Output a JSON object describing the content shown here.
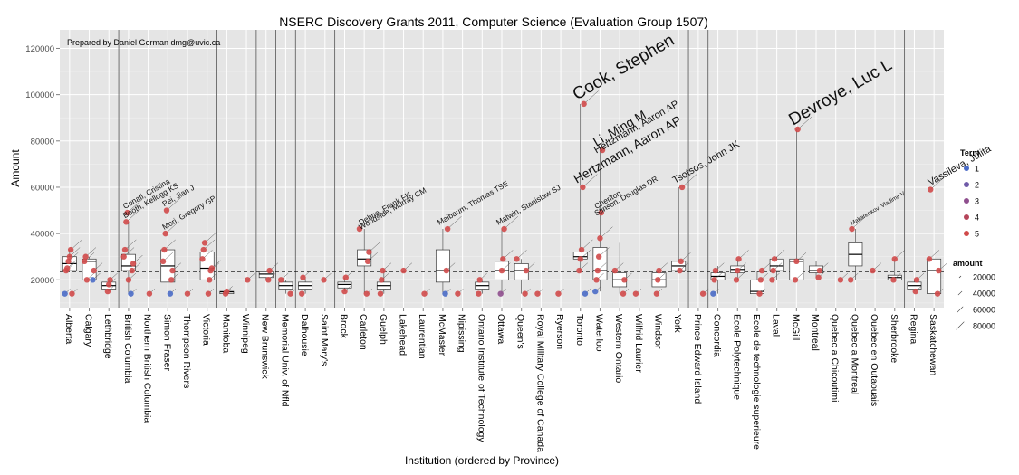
{
  "chart_data": {
    "type": "scatter",
    "title": "NSERC Discovery Grants 2011, Computer Science (Evaluation Group 1507)",
    "note": "Prepared by Daniel German dmg@uvic.ca",
    "xlabel": "Institution (ordered by Province)",
    "ylabel": "Amount",
    "ylim": [
      8000,
      128000
    ],
    "yticks": [
      20000,
      40000,
      60000,
      80000,
      100000,
      120000
    ],
    "ytick_labels": [
      "20000",
      "40000",
      "60000",
      "80000",
      "100000",
      "120000"
    ],
    "reference_line": 23600,
    "categories": [
      "Alberta",
      "Calgary",
      "Lethbridge",
      "British Columbia",
      "Northern British Columbia",
      "Simon Fraser",
      "Thompson Rivers",
      "Victoria",
      "Manitoba",
      "Winnipeg",
      "New Brunswick",
      "Memorial Univ. of Nfld",
      "Dalhousie",
      "Saint Mary's",
      "Brock",
      "Carleton",
      "Guelph",
      "Lakehead",
      "Laurentian",
      "McMaster",
      "Nipissing",
      "Ontario Institute of Technology",
      "Ottawa",
      "Queen's",
      "Royal Military College of Canada",
      "Ryerson",
      "Toronto",
      "Waterloo",
      "Western Ontario",
      "Wilfrid Laurier",
      "Windsor",
      "York",
      "Prince Edward Island",
      "Concordia",
      "Ecole Polytechnique",
      "Ecole de technologie superieure",
      "Laval",
      "McGill",
      "Montreal",
      "Quebec a Chicoutimi",
      "Quebec a Montreal",
      "Quebec en Outaouais",
      "Sherbrooke",
      "Regina",
      "Saskatchewan"
    ],
    "province_breaks_after": [
      2,
      7,
      9,
      10,
      11,
      13,
      31,
      32,
      42
    ],
    "boxes": [
      {
        "i": 0,
        "q1": 24000,
        "med": 27000,
        "q3": 30000,
        "lo": 24000,
        "hi": 33000
      },
      {
        "i": 1,
        "q1": 20000,
        "med": 28000,
        "q3": 29000,
        "lo": 20000,
        "hi": 30000
      },
      {
        "i": 2,
        "q1": 16000,
        "med": 17500,
        "q3": 19000,
        "lo": 15000,
        "hi": 20000
      },
      {
        "i": 3,
        "q1": 24000,
        "med": 26000,
        "q3": 31000,
        "lo": 14000,
        "hi": 45000
      },
      {
        "i": 5,
        "q1": 19000,
        "med": 26000,
        "q3": 33000,
        "lo": 14000,
        "hi": 50000
      },
      {
        "i": 7,
        "q1": 20000,
        "med": 25000,
        "q3": 32000,
        "lo": 14000,
        "hi": 36000
      },
      {
        "i": 8,
        "q1": 14000,
        "med": 14800,
        "q3": 15000,
        "lo": 14000,
        "hi": 15000
      },
      {
        "i": 10,
        "q1": 21000,
        "med": 22500,
        "q3": 23500,
        "lo": 20000,
        "hi": 24000
      },
      {
        "i": 11,
        "q1": 16000,
        "med": 17500,
        "q3": 19000,
        "lo": 14000,
        "hi": 20000
      },
      {
        "i": 12,
        "q1": 16000,
        "med": 17500,
        "q3": 19000,
        "lo": 14000,
        "hi": 21000
      },
      {
        "i": 14,
        "q1": 16500,
        "med": 18000,
        "q3": 19000,
        "lo": 15000,
        "hi": 21000
      },
      {
        "i": 15,
        "q1": 26000,
        "med": 29000,
        "q3": 33000,
        "lo": 14000,
        "hi": 42000
      },
      {
        "i": 16,
        "q1": 16000,
        "med": 17500,
        "q3": 19000,
        "lo": 14000,
        "hi": 24000
      },
      {
        "i": 19,
        "q1": 19000,
        "med": 24000,
        "q3": 33000,
        "lo": 14000,
        "hi": 42000
      },
      {
        "i": 21,
        "q1": 16000,
        "med": 17500,
        "q3": 19000,
        "lo": 14000,
        "hi": 20000
      },
      {
        "i": 22,
        "q1": 20000,
        "med": 24000,
        "q3": 28000,
        "lo": 14000,
        "hi": 42000
      },
      {
        "i": 23,
        "q1": 20000,
        "med": 24000,
        "q3": 27000,
        "lo": 14000,
        "hi": 29000
      },
      {
        "i": 26,
        "q1": 29000,
        "med": 30000,
        "q3": 32000,
        "lo": 24000,
        "hi": 96000
      },
      {
        "i": 27,
        "q1": 20000,
        "med": 24000,
        "q3": 34000,
        "lo": 15000,
        "hi": 76000
      },
      {
        "i": 28,
        "q1": 17000,
        "med": 20000,
        "q3": 23000,
        "lo": 14000,
        "hi": 36000
      },
      {
        "i": 30,
        "q1": 17000,
        "med": 20000,
        "q3": 23000,
        "lo": 14000,
        "hi": 24000
      },
      {
        "i": 31,
        "q1": 24000,
        "med": 26000,
        "q3": 28000,
        "lo": 24000,
        "hi": 60000
      },
      {
        "i": 33,
        "q1": 20000,
        "med": 21500,
        "q3": 23000,
        "lo": 14000,
        "hi": 26000
      },
      {
        "i": 34,
        "q1": 23000,
        "med": 24500,
        "q3": 26000,
        "lo": 20000,
        "hi": 29000
      },
      {
        "i": 35,
        "q1": 14000,
        "med": 15000,
        "q3": 20000,
        "lo": 14000,
        "hi": 24000
      },
      {
        "i": 36,
        "q1": 24000,
        "med": 26000,
        "q3": 29000,
        "lo": 20000,
        "hi": 30000
      },
      {
        "i": 37,
        "q1": 20000,
        "med": 28000,
        "q3": 29000,
        "lo": 20000,
        "hi": 85000
      },
      {
        "i": 38,
        "q1": 23000,
        "med": 24000,
        "q3": 26000,
        "lo": 21000,
        "hi": 28000
      },
      {
        "i": 40,
        "q1": 26000,
        "med": 31000,
        "q3": 36000,
        "lo": 20000,
        "hi": 42000
      },
      {
        "i": 42,
        "q1": 20000,
        "med": 21000,
        "q3": 22000,
        "lo": 20000,
        "hi": 29000
      },
      {
        "i": 43,
        "q1": 16000,
        "med": 17500,
        "q3": 19000,
        "lo": 15000,
        "hi": 20000
      },
      {
        "i": 44,
        "q1": 14000,
        "med": 24000,
        "q3": 29000,
        "lo": 14000,
        "hi": 29000
      }
    ],
    "points": [
      {
        "i": 0,
        "y": 14000,
        "term": 1
      },
      {
        "i": 0,
        "y": 24000,
        "term": 5
      },
      {
        "i": 0,
        "y": 25000,
        "term": 5
      },
      {
        "i": 0,
        "y": 28000,
        "term": 5
      },
      {
        "i": 0,
        "y": 30000,
        "term": 5
      },
      {
        "i": 0,
        "y": 33000,
        "term": 5
      },
      {
        "i": 0,
        "y": 14000,
        "term": 5
      },
      {
        "i": 1,
        "y": 20000,
        "term": 1
      },
      {
        "i": 1,
        "y": 24000,
        "term": 5
      },
      {
        "i": 1,
        "y": 28000,
        "term": 5
      },
      {
        "i": 1,
        "y": 30000,
        "term": 5
      },
      {
        "i": 1,
        "y": 20000,
        "term": 5
      },
      {
        "i": 2,
        "y": 15000,
        "term": 5
      },
      {
        "i": 2,
        "y": 18000,
        "term": 5
      },
      {
        "i": 2,
        "y": 20000,
        "term": 5
      },
      {
        "i": 3,
        "y": 14000,
        "term": 1
      },
      {
        "i": 3,
        "y": 24000,
        "term": 5
      },
      {
        "i": 3,
        "y": 27000,
        "term": 5
      },
      {
        "i": 3,
        "y": 30000,
        "term": 5
      },
      {
        "i": 3,
        "y": 33000,
        "term": 5
      },
      {
        "i": 3,
        "y": 45000,
        "term": 5
      },
      {
        "i": 3,
        "y": 49000,
        "term": 5
      },
      {
        "i": 3,
        "y": 20000,
        "term": 5
      },
      {
        "i": 4,
        "y": 14000,
        "term": 5
      },
      {
        "i": 5,
        "y": 14000,
        "term": 1
      },
      {
        "i": 5,
        "y": 20000,
        "term": 5
      },
      {
        "i": 5,
        "y": 24000,
        "term": 5
      },
      {
        "i": 5,
        "y": 28000,
        "term": 5
      },
      {
        "i": 5,
        "y": 33000,
        "term": 5
      },
      {
        "i": 5,
        "y": 40000,
        "term": 5
      },
      {
        "i": 5,
        "y": 50000,
        "term": 5
      },
      {
        "i": 6,
        "y": 14000,
        "term": 5
      },
      {
        "i": 7,
        "y": 14000,
        "term": 5
      },
      {
        "i": 7,
        "y": 20000,
        "term": 5
      },
      {
        "i": 7,
        "y": 24000,
        "term": 5
      },
      {
        "i": 7,
        "y": 25000,
        "term": 5
      },
      {
        "i": 7,
        "y": 29000,
        "term": 5
      },
      {
        "i": 7,
        "y": 33000,
        "term": 5
      },
      {
        "i": 7,
        "y": 36000,
        "term": 5
      },
      {
        "i": 8,
        "y": 14000,
        "term": 5
      },
      {
        "i": 8,
        "y": 15000,
        "term": 5
      },
      {
        "i": 9,
        "y": 20000,
        "term": 5
      },
      {
        "i": 10,
        "y": 20000,
        "term": 5
      },
      {
        "i": 10,
        "y": 24000,
        "term": 5
      },
      {
        "i": 11,
        "y": 14000,
        "term": 5
      },
      {
        "i": 11,
        "y": 20000,
        "term": 5
      },
      {
        "i": 12,
        "y": 14000,
        "term": 5
      },
      {
        "i": 12,
        "y": 21000,
        "term": 5
      },
      {
        "i": 13,
        "y": 20000,
        "term": 5
      },
      {
        "i": 14,
        "y": 15000,
        "term": 5
      },
      {
        "i": 14,
        "y": 21000,
        "term": 5
      },
      {
        "i": 15,
        "y": 14000,
        "term": 5
      },
      {
        "i": 15,
        "y": 28000,
        "term": 5
      },
      {
        "i": 15,
        "y": 32000,
        "term": 5
      },
      {
        "i": 15,
        "y": 42000,
        "term": 5
      },
      {
        "i": 16,
        "y": 14000,
        "term": 5
      },
      {
        "i": 16,
        "y": 20000,
        "term": 5
      },
      {
        "i": 16,
        "y": 24000,
        "term": 5
      },
      {
        "i": 17,
        "y": 24000,
        "term": 5
      },
      {
        "i": 18,
        "y": 14000,
        "term": 5
      },
      {
        "i": 19,
        "y": 14000,
        "term": 1
      },
      {
        "i": 19,
        "y": 24000,
        "term": 5
      },
      {
        "i": 19,
        "y": 42000,
        "term": 5
      },
      {
        "i": 20,
        "y": 14000,
        "term": 5
      },
      {
        "i": 21,
        "y": 14000,
        "term": 5
      },
      {
        "i": 21,
        "y": 20000,
        "term": 5
      },
      {
        "i": 22,
        "y": 14000,
        "term": 3
      },
      {
        "i": 22,
        "y": 24000,
        "term": 5
      },
      {
        "i": 22,
        "y": 29000,
        "term": 5
      },
      {
        "i": 22,
        "y": 42000,
        "term": 5
      },
      {
        "i": 23,
        "y": 14000,
        "term": 5
      },
      {
        "i": 23,
        "y": 24000,
        "term": 5
      },
      {
        "i": 23,
        "y": 29000,
        "term": 5
      },
      {
        "i": 24,
        "y": 14000,
        "term": 5
      },
      {
        "i": 25,
        "y": 14000,
        "term": 5
      },
      {
        "i": 26,
        "y": 24000,
        "term": 5
      },
      {
        "i": 26,
        "y": 29000,
        "term": 5
      },
      {
        "i": 26,
        "y": 33000,
        "term": 5
      },
      {
        "i": 26,
        "y": 60000,
        "term": 5
      },
      {
        "i": 26,
        "y": 96000,
        "term": 5
      },
      {
        "i": 26,
        "y": 14000,
        "term": 1
      },
      {
        "i": 27,
        "y": 15000,
        "term": 1
      },
      {
        "i": 27,
        "y": 20000,
        "term": 5
      },
      {
        "i": 27,
        "y": 24000,
        "term": 5
      },
      {
        "i": 27,
        "y": 30000,
        "term": 5
      },
      {
        "i": 27,
        "y": 38000,
        "term": 5
      },
      {
        "i": 27,
        "y": 49000,
        "term": 5
      },
      {
        "i": 27,
        "y": 76000,
        "term": 5
      },
      {
        "i": 28,
        "y": 14000,
        "term": 5
      },
      {
        "i": 28,
        "y": 20000,
        "term": 5
      },
      {
        "i": 28,
        "y": 24000,
        "term": 5
      },
      {
        "i": 29,
        "y": 14000,
        "term": 5
      },
      {
        "i": 30,
        "y": 14000,
        "term": 5
      },
      {
        "i": 30,
        "y": 20000,
        "term": 5
      },
      {
        "i": 30,
        "y": 24000,
        "term": 5
      },
      {
        "i": 31,
        "y": 24000,
        "term": 5
      },
      {
        "i": 31,
        "y": 28000,
        "term": 5
      },
      {
        "i": 31,
        "y": 60000,
        "term": 5
      },
      {
        "i": 32,
        "y": 14000,
        "term": 5
      },
      {
        "i": 33,
        "y": 14000,
        "term": 1
      },
      {
        "i": 33,
        "y": 20000,
        "term": 5
      },
      {
        "i": 33,
        "y": 24000,
        "term": 5
      },
      {
        "i": 34,
        "y": 20000,
        "term": 5
      },
      {
        "i": 34,
        "y": 24000,
        "term": 5
      },
      {
        "i": 34,
        "y": 29000,
        "term": 5
      },
      {
        "i": 35,
        "y": 14000,
        "term": 5
      },
      {
        "i": 35,
        "y": 20000,
        "term": 5
      },
      {
        "i": 35,
        "y": 24000,
        "term": 5
      },
      {
        "i": 36,
        "y": 20000,
        "term": 5
      },
      {
        "i": 36,
        "y": 24000,
        "term": 5
      },
      {
        "i": 36,
        "y": 29000,
        "term": 5
      },
      {
        "i": 37,
        "y": 20000,
        "term": 5
      },
      {
        "i": 37,
        "y": 28000,
        "term": 5
      },
      {
        "i": 37,
        "y": 85000,
        "term": 5
      },
      {
        "i": 38,
        "y": 21000,
        "term": 5
      },
      {
        "i": 38,
        "y": 24000,
        "term": 5
      },
      {
        "i": 39,
        "y": 20000,
        "term": 5
      },
      {
        "i": 40,
        "y": 20000,
        "term": 5
      },
      {
        "i": 40,
        "y": 42000,
        "term": 5
      },
      {
        "i": 41,
        "y": 24000,
        "term": 5
      },
      {
        "i": 42,
        "y": 20000,
        "term": 5
      },
      {
        "i": 42,
        "y": 29000,
        "term": 5
      },
      {
        "i": 43,
        "y": 15000,
        "term": 5
      },
      {
        "i": 43,
        "y": 20000,
        "term": 5
      },
      {
        "i": 44,
        "y": 14000,
        "term": 5
      },
      {
        "i": 44,
        "y": 24000,
        "term": 5
      },
      {
        "i": 44,
        "y": 29000,
        "term": 5
      },
      {
        "i": 44,
        "y": 59000,
        "term": 5
      }
    ],
    "name_labels": [
      {
        "i": 26,
        "y": 96000,
        "text": "Cook, Stephen",
        "size": "xl"
      },
      {
        "i": 37,
        "y": 85000,
        "text": "Devroye, Luc L",
        "size": "xl"
      },
      {
        "i": 27,
        "y": 76000,
        "text": "Li, Ming M",
        "size": "l"
      },
      {
        "i": 27,
        "y": 73000,
        "text": "Hertzmann, Aaron AP",
        "size": "m"
      },
      {
        "i": 26,
        "y": 60000,
        "text": "Hertzmann, Aaron AP",
        "size": "l"
      },
      {
        "i": 31,
        "y": 60000,
        "text": "Tsotsos, John JK",
        "size": "m"
      },
      {
        "i": 44,
        "y": 59000,
        "text": "Vassileva, Julita",
        "size": "m"
      },
      {
        "i": 3,
        "y": 45000,
        "text": "Booth, Kellogg KS",
        "size": "s"
      },
      {
        "i": 3,
        "y": 49000,
        "text": "Conati, Cristina",
        "size": "s"
      },
      {
        "i": 5,
        "y": 50000,
        "text": "Pei, Jian J",
        "size": "s"
      },
      {
        "i": 5,
        "y": 40000,
        "text": "Mori, Gregory GP",
        "size": "s"
      },
      {
        "i": 15,
        "y": 42000,
        "text": "Dehne, Frank FK",
        "size": "s"
      },
      {
        "i": 15,
        "y": 40000,
        "text": "Woodside, Murray CM",
        "size": "s"
      },
      {
        "i": 19,
        "y": 42000,
        "text": "Maibaum, Thomas TSE",
        "size": "s"
      },
      {
        "i": 22,
        "y": 42000,
        "text": "Matwin, Stanislaw SJ",
        "size": "s"
      },
      {
        "i": 27,
        "y": 49000,
        "text": "Cheriton",
        "size": "s"
      },
      {
        "i": 27,
        "y": 46000,
        "text": "Stinson, Douglas DR",
        "size": "s"
      },
      {
        "i": 40,
        "y": 42000,
        "text": "Makarenkov, Vladimir V",
        "size": "xs"
      }
    ],
    "legend_term": {
      "title": "Term",
      "items": [
        "1",
        "2",
        "3",
        "4",
        "5"
      ],
      "colors": [
        "#4a6bc7",
        "#6f5aa8",
        "#8f4f8e",
        "#b5455a",
        "#d04a4a"
      ]
    },
    "legend_amount": {
      "title": "amount",
      "items": [
        "20000",
        "40000",
        "60000",
        "80000"
      ]
    }
  }
}
